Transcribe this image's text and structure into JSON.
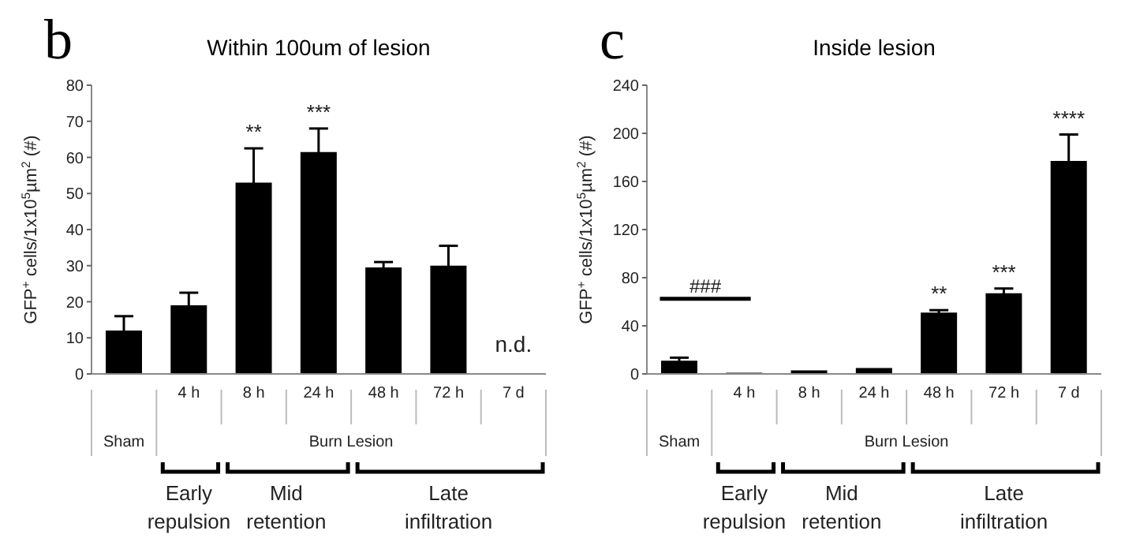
{
  "chart_data": [
    {
      "type": "bar",
      "title": "Within 100um of lesion",
      "ylabel": "GFP$^{+}$ cells/1x10$^{5}$µm$^{2}$ (#)",
      "categories": [
        null,
        "4 h",
        "8 h",
        "24 h",
        "48 h",
        "72 h",
        "7 d"
      ],
      "values": [
        12,
        19,
        53,
        61.5,
        29.5,
        30,
        null
      ],
      "errors": [
        4,
        3.5,
        9.5,
        6.5,
        1.5,
        5.5,
        null
      ],
      "color": "#000000",
      "ylim": [
        0,
        80
      ],
      "yticks": [
        0,
        10,
        20,
        30,
        40,
        50,
        60,
        70,
        80
      ],
      "annotations": [
        "b",
        "Sham",
        "Burn Lesion",
        "Early repulsion",
        "Mid retention",
        "Late infiltration",
        "**",
        "***",
        "n.d."
      ]
    },
    {
      "type": "bar",
      "title": "Inside lesion",
      "ylabel": "GFP$^{+}$ cells/1x10$^{5}$µm$^{2}$ (#)",
      "categories": [
        null,
        "4 h",
        "8 h",
        "24 h",
        "48 h",
        "72 h",
        "7 d"
      ],
      "values": [
        11,
        1,
        3,
        5,
        51,
        67,
        177
      ],
      "errors": [
        2.5,
        null,
        null,
        null,
        2,
        4,
        22
      ],
      "color": "#000000",
      "ylim": [
        0,
        240
      ],
      "yticks": [
        0,
        40,
        80,
        120,
        160,
        200,
        240
      ],
      "annotations": [
        "c",
        "Sham",
        "Burn Lesion",
        "Early repulsion",
        "Mid retention",
        "Late infiltration",
        "###",
        "**",
        "***",
        "****"
      ]
    }
  ]
}
